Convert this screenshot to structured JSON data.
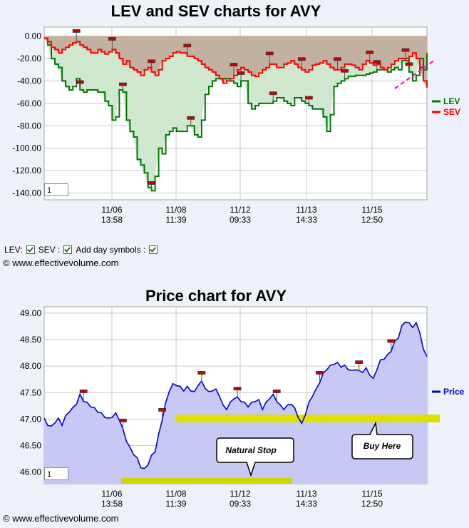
{
  "chart_data": [
    {
      "type": "line",
      "title": "LEV and SEV charts for AVY",
      "x_tick_labels": [
        [
          "11/06",
          "13:58"
        ],
        [
          "11/08",
          "11:39"
        ],
        [
          "11/12",
          "09:33"
        ],
        [
          "11/13",
          "14:33"
        ],
        [
          "11/15",
          "12:50"
        ]
      ],
      "yticks": [
        "0.00",
        "-20.00",
        "-40.00",
        "-60.00",
        "-80.00",
        "-100.00",
        "-120.00",
        "-140.00"
      ],
      "ylim": [
        -146,
        8
      ],
      "grid": true,
      "legend_position": "right",
      "series": [
        {
          "name": "LEV",
          "color": "#007700",
          "values": [
            -2,
            -8,
            -20,
            -25,
            -28,
            -40,
            -45,
            -48,
            -45,
            -38,
            -48,
            -50,
            -48,
            -48,
            -48,
            -50,
            -50,
            -58,
            -62,
            -75,
            -72,
            -48,
            -50,
            -75,
            -85,
            -90,
            -110,
            -115,
            -122,
            -135,
            -138,
            -125,
            -100,
            -105,
            -88,
            -85,
            -82,
            -85,
            -85,
            -85,
            -80,
            -80,
            -88,
            -90,
            -75,
            -52,
            -45,
            -40,
            -38,
            -38,
            -38,
            -38,
            -40,
            -42,
            -45,
            -40,
            -40,
            -60,
            -65,
            -62,
            -60,
            -60,
            -60,
            -60,
            -58,
            -55,
            -55,
            -58,
            -60,
            -62,
            -55,
            -55,
            -58,
            -60,
            -62,
            -65,
            -65,
            -65,
            -72,
            -85,
            -70,
            -45,
            -42,
            -40,
            -38,
            -36,
            -36,
            -35,
            -35,
            -35,
            -34,
            -33,
            -32,
            -30,
            -30,
            -30,
            -32,
            -30,
            -28,
            -30,
            -22,
            -20,
            -32,
            -40,
            -35,
            -20,
            -30,
            -15
          ]
        },
        {
          "name": "SEV",
          "color": "#ff0000",
          "values": [
            -2,
            -5,
            -10,
            -12,
            -15,
            -12,
            -10,
            -8,
            -6,
            -5,
            -8,
            -10,
            -12,
            -15,
            -15,
            -12,
            -14,
            -16,
            -14,
            -12,
            -15,
            -20,
            -25,
            -22,
            -28,
            -30,
            -32,
            -35,
            -30,
            -28,
            -32,
            -35,
            -30,
            -22,
            -20,
            -18,
            -15,
            -14,
            -15,
            -15,
            -18,
            -18,
            -20,
            -22,
            -25,
            -28,
            -30,
            -32,
            -35,
            -38,
            -42,
            -40,
            -38,
            -35,
            -30,
            -28,
            -30,
            -32,
            -35,
            -36,
            -33,
            -30,
            -28,
            -25,
            -25,
            -28,
            -28,
            -25,
            -24,
            -22,
            -25,
            -28,
            -30,
            -32,
            -30,
            -26,
            -25,
            -24,
            -22,
            -25,
            -28,
            -30,
            -30,
            -28,
            -25,
            -25,
            -26,
            -28,
            -30,
            -25,
            -22,
            -24,
            -26,
            -25,
            -28,
            -30,
            -28,
            -25,
            -22,
            -20,
            -20,
            -22,
            -18,
            -15,
            -20,
            -28,
            -40,
            -46
          ]
        }
      ]
    },
    {
      "type": "area",
      "title": "Price chart for AVY",
      "x_tick_labels": [
        [
          "11/06",
          "13:58"
        ],
        [
          "11/08",
          "11:39"
        ],
        [
          "11/12",
          "09:33"
        ],
        [
          "11/13",
          "14:33"
        ],
        [
          "11/15",
          "12:50"
        ]
      ],
      "yticks": [
        "49.00",
        "48.50",
        "48.00",
        "47.50",
        "47.00",
        "46.50",
        "46.00"
      ],
      "ylim": [
        45.78,
        49.12
      ],
      "grid": true,
      "legend_position": "right",
      "series": [
        {
          "name": "Price",
          "color": "#0000dd",
          "values": [
            47.0,
            46.9,
            46.85,
            46.95,
            47.0,
            46.9,
            47.05,
            47.15,
            47.2,
            47.3,
            47.45,
            47.35,
            47.3,
            47.25,
            47.2,
            47.15,
            47.1,
            47.05,
            47.0,
            47.05,
            47.1,
            47.0,
            46.8,
            46.6,
            46.45,
            46.35,
            46.25,
            46.1,
            46.05,
            46.15,
            46.3,
            46.4,
            46.7,
            47.0,
            47.3,
            47.55,
            47.65,
            47.65,
            47.6,
            47.55,
            47.6,
            47.55,
            47.5,
            47.65,
            47.7,
            47.6,
            47.5,
            47.55,
            47.55,
            47.45,
            47.25,
            47.2,
            47.3,
            47.4,
            47.4,
            47.35,
            47.3,
            47.25,
            47.3,
            47.35,
            47.35,
            47.2,
            47.3,
            47.4,
            47.45,
            47.35,
            47.25,
            47.2,
            47.25,
            47.3,
            47.2,
            47.05,
            46.9,
            47.1,
            47.3,
            47.45,
            47.55,
            47.7,
            47.85,
            47.95,
            48.0,
            48.05,
            48.05,
            48.0,
            48.0,
            47.95,
            47.9,
            47.95,
            47.9,
            47.9,
            47.95,
            47.85,
            47.75,
            47.95,
            48.1,
            48.15,
            48.2,
            48.3,
            48.45,
            48.55,
            48.75,
            48.85,
            48.8,
            48.75,
            48.8,
            48.65,
            48.3,
            48.2
          ]
        }
      ],
      "annotations": [
        "Natural Stop",
        "Buy Here"
      ]
    }
  ],
  "controls": {
    "lev_label": "LEV:",
    "sev_label": "SEV :",
    "day_symbols_label": "Add day symbols :",
    "top_input_value": "1",
    "bottom_input_value": "1"
  },
  "copyright": "© www.effectivevolume.com",
  "colors": {
    "lev": "#007700",
    "sev": "#ff0000",
    "price": "#0000dd",
    "highlight": "#e0e000",
    "stop_fill": "#cc0000"
  }
}
